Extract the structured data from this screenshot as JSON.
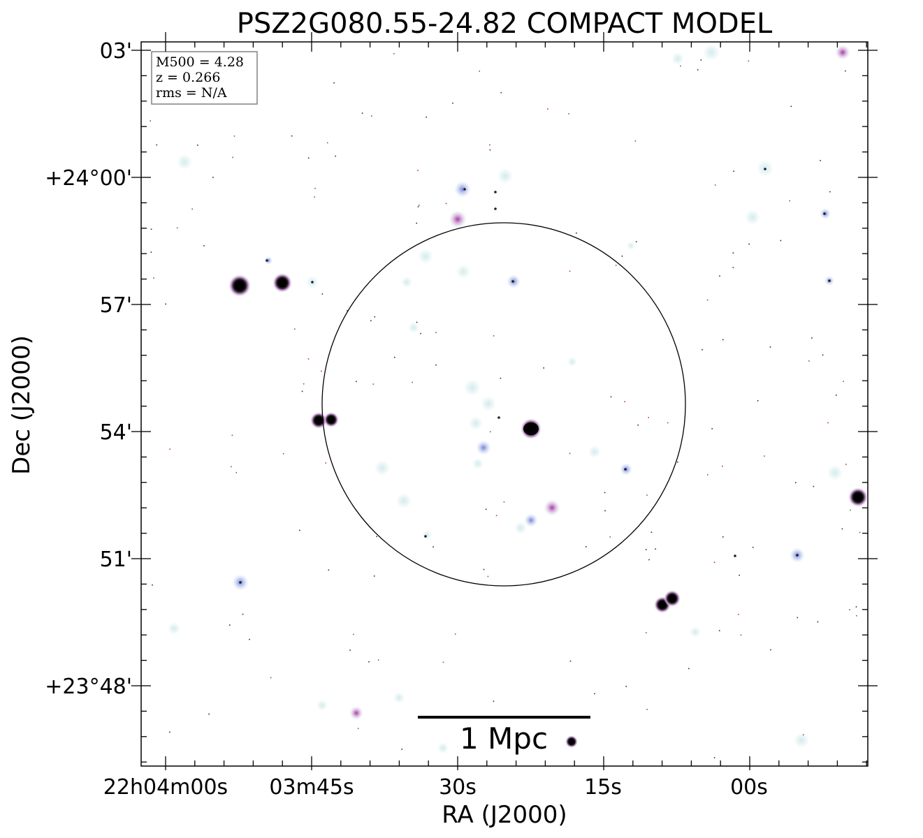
{
  "figure": {
    "title": "PSZ2G080.55-24.82 COMPACT MODEL",
    "x_axis_label": "RA (J2000)",
    "y_axis_label": "Dec (J2000)"
  },
  "ra_ticks": [
    "22h04m00s",
    "03m45s",
    "30s",
    "15s",
    "00s"
  ],
  "dec_ticks": [
    "03'",
    "+24°00'",
    "57'",
    "54'",
    "51'",
    "+23°48'"
  ],
  "info_box": {
    "mass": "M500 = 4.28",
    "redshift": "z = 0.266",
    "rms": "rms = N/A"
  },
  "scale_bar": {
    "label": "1 Mpc"
  },
  "colors": {
    "background": "#ffffff",
    "faint_halo": "#cfe9ea",
    "blue_source": "#b8c4ec",
    "magenta_source": "#d9a8d8",
    "bright_core": "#000000",
    "noise_red": "#c0392b"
  }
}
